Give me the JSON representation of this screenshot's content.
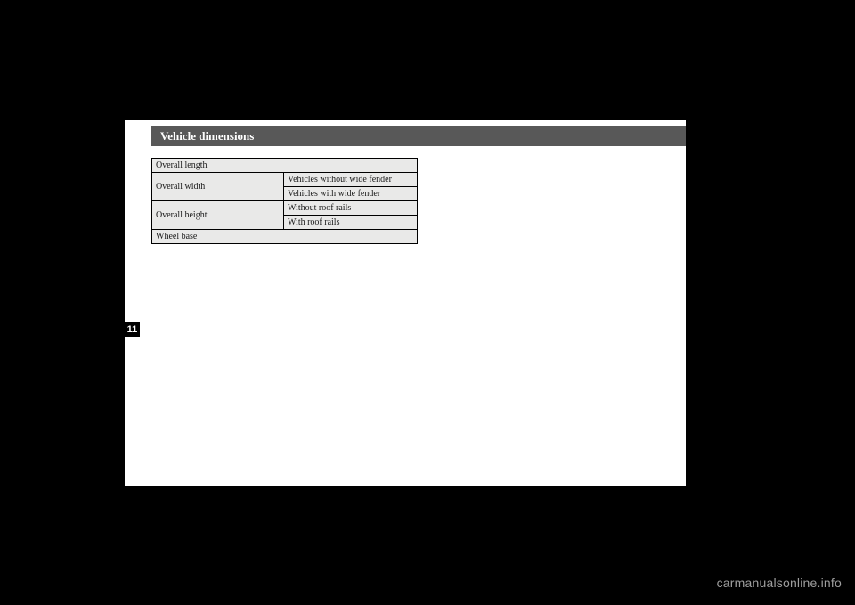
{
  "section": {
    "title": "Vehicle dimensions"
  },
  "sideTab": {
    "number": "11"
  },
  "specs": {
    "rows": [
      {
        "label": "Overall length",
        "sub": ""
      },
      {
        "label": "Overall width",
        "sub": "Vehicles without wide fender"
      },
      {
        "label": "",
        "sub": "Vehicles with wide fender"
      },
      {
        "label": "Overall height",
        "sub": "Without roof rails"
      },
      {
        "label": "",
        "sub": "With roof rails"
      },
      {
        "label": "Wheel base",
        "sub": ""
      }
    ]
  },
  "watermark": "carmanualsonline.info"
}
